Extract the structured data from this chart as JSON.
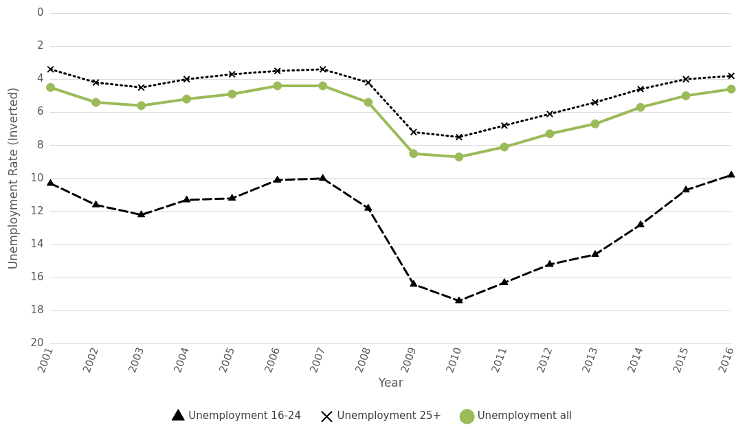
{
  "chart_data": {
    "type": "line",
    "xlabel": "Year",
    "ylabel": "Unemployment Rate (Inverted)",
    "categories": [
      "2001",
      "2002",
      "2003",
      "2004",
      "2005",
      "2006",
      "2007",
      "2008",
      "2009",
      "2010",
      "2011",
      "2012",
      "2013",
      "2014",
      "2015",
      "2016"
    ],
    "ylim": [
      20,
      0
    ],
    "yticks": [
      0,
      2,
      4,
      6,
      8,
      10,
      12,
      14,
      16,
      18,
      20
    ],
    "grid": "y",
    "legend": "bottom",
    "series": [
      {
        "name": "Unemployment 16-24",
        "color": "#000000",
        "marker": "triangle",
        "line_style": "dashed",
        "values": [
          10.3,
          11.6,
          12.2,
          11.3,
          11.2,
          10.1,
          10.0,
          11.8,
          16.4,
          17.4,
          16.3,
          15.2,
          14.6,
          12.8,
          10.7,
          9.8
        ]
      },
      {
        "name": "Unemployment 25+",
        "color": "#000000",
        "marker": "cross",
        "line_style": "dotted",
        "values": [
          3.4,
          4.2,
          4.5,
          4.0,
          3.7,
          3.5,
          3.4,
          4.2,
          7.2,
          7.5,
          6.8,
          6.1,
          5.4,
          4.6,
          4.0,
          3.8
        ]
      },
      {
        "name": "Unemployment all",
        "color": "#9bbb59",
        "marker": "circle",
        "line_style": "solid",
        "values": [
          4.5,
          5.4,
          5.6,
          5.2,
          4.9,
          4.4,
          4.4,
          5.4,
          8.5,
          8.7,
          8.1,
          7.3,
          6.7,
          5.7,
          5.0,
          4.6
        ]
      }
    ]
  }
}
